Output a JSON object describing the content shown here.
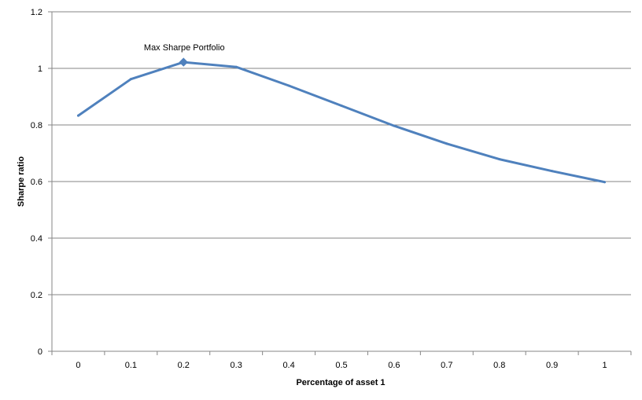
{
  "chart_data": {
    "type": "line",
    "xlabel": "Percentage of asset 1",
    "ylabel": "Sharpe ratio",
    "categories": [
      "0",
      "0.1",
      "0.2",
      "0.3",
      "0.4",
      "0.5",
      "0.6",
      "0.7",
      "0.8",
      "0.9",
      "1"
    ],
    "x": [
      0,
      0.1,
      0.2,
      0.3,
      0.4,
      0.5,
      0.6,
      0.7,
      0.8,
      0.9,
      1
    ],
    "series": [
      {
        "values": [
          0.833,
          0.962,
          1.022,
          1.005,
          0.939,
          0.868,
          0.797,
          0.734,
          0.679,
          0.637,
          0.598
        ]
      }
    ],
    "ylim": [
      0,
      1.2
    ],
    "yticks": [
      "0",
      "0.2",
      "0.4",
      "0.6",
      "0.8",
      "1",
      "1.2"
    ],
    "grid": "horizontal",
    "legend": "none",
    "annotation": {
      "text": "Max Sharpe Portfolio",
      "x": 0.2,
      "y": 1.022
    },
    "colors": {
      "line": "#4f81bd",
      "grid": "#868686",
      "axis": "#868686"
    }
  }
}
